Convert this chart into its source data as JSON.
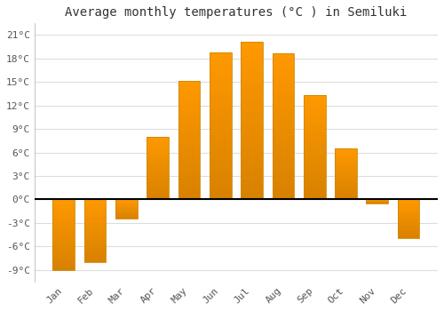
{
  "months": [
    "Jan",
    "Feb",
    "Mar",
    "Apr",
    "May",
    "Jun",
    "Jul",
    "Aug",
    "Sep",
    "Oct",
    "Nov",
    "Dec"
  ],
  "values": [
    -9,
    -8,
    -2.5,
    8,
    15.2,
    18.8,
    20.2,
    18.7,
    13.3,
    6.5,
    -0.5,
    -5
  ],
  "bar_color_top": "#FFB300",
  "bar_color_bottom": "#FF8C00",
  "bar_edge_color": "#CC8800",
  "title": "Average monthly temperatures (°C ) in Semiluki",
  "ylim": [
    -10.5,
    22.5
  ],
  "yticks": [
    -9,
    -6,
    -3,
    0,
    3,
    6,
    9,
    12,
    15,
    18,
    21
  ],
  "ytick_labels": [
    "-9°C",
    "-6°C",
    "-3°C",
    "0°C",
    "3°C",
    "6°C",
    "9°C",
    "12°C",
    "15°C",
    "18°C",
    "21°C"
  ],
  "background_color": "#ffffff",
  "plot_bg_color": "#ffffff",
  "grid_color": "#dddddd",
  "title_fontsize": 10,
  "tick_fontsize": 8,
  "zero_line_color": "#000000",
  "bar_width": 0.7,
  "figsize": [
    5.0,
    3.5
  ],
  "dpi": 100
}
